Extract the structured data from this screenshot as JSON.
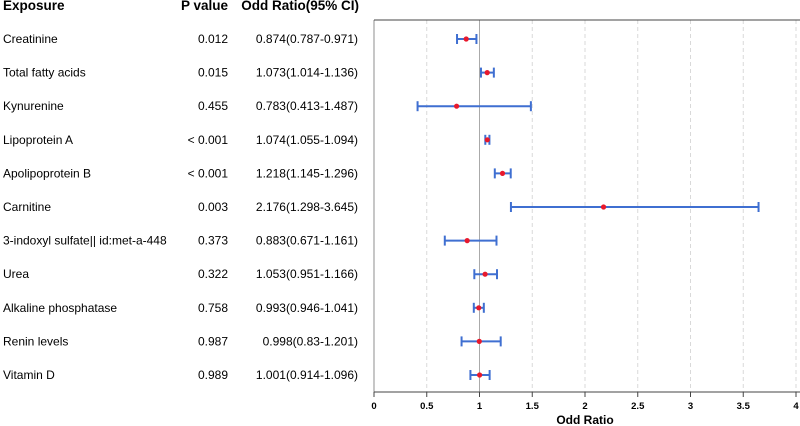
{
  "headers": {
    "exposure": "Exposure",
    "pvalue": "P value",
    "or": "Odd Ratio(95% CI)"
  },
  "rows": [
    {
      "exposure": "Creatinine",
      "p": "0.012",
      "or_text": "0.874(0.787-0.971)"
    },
    {
      "exposure": "Total fatty acids",
      "p": "0.015",
      "or_text": "1.073(1.014-1.136)"
    },
    {
      "exposure": "Kynurenine",
      "p": "0.455",
      "or_text": "0.783(0.413-1.487)"
    },
    {
      "exposure": "Lipoprotein A",
      "p": "< 0.001",
      "or_text": "1.074(1.055-1.094)"
    },
    {
      "exposure": "Apolipoprotein B",
      "p": "< 0.001",
      "or_text": "1.218(1.145-1.296)"
    },
    {
      "exposure": "Carnitine",
      "p": "0.003",
      "or_text": "2.176(1.298-3.645)"
    },
    {
      "exposure": "3-indoxyl sulfate|| id:met-a-448",
      "p": "0.373",
      "or_text": "0.883(0.671-1.161)"
    },
    {
      "exposure": "Urea",
      "p": "0.322",
      "or_text": "1.053(0.951-1.166)"
    },
    {
      "exposure": "Alkaline phosphatase",
      "p": "0.758",
      "or_text": "0.993(0.946-1.041)"
    },
    {
      "exposure": "Renin levels",
      "p": "0.987",
      "or_text": "0.998(0.83-1.201)"
    },
    {
      "exposure": "Vitamin D",
      "p": "0.989",
      "or_text": "1.001(0.914-1.096)"
    }
  ],
  "chart_data": {
    "type": "forest",
    "xlabel": "Odd Ratio",
    "xlim": [
      0,
      4
    ],
    "xticks": [
      "0",
      "0.5",
      "1",
      "1.5",
      "2",
      "2.5",
      "3",
      "3.5",
      "4"
    ],
    "reference_line": 1,
    "grid": "vertical dashed",
    "categories": [
      "Creatinine",
      "Total fatty acids",
      "Kynurenine",
      "Lipoprotein A",
      "Apolipoprotein B",
      "Carnitine",
      "3-indoxyl sulfate|| id:met-a-448",
      "Urea",
      "Alkaline phosphatase",
      "Renin levels",
      "Vitamin D"
    ],
    "or": [
      0.874,
      1.073,
      0.783,
      1.074,
      1.218,
      2.176,
      0.883,
      1.053,
      0.993,
      0.998,
      1.001
    ],
    "lower": [
      0.787,
      1.014,
      0.413,
      1.055,
      1.145,
      1.298,
      0.671,
      0.951,
      0.946,
      0.83,
      0.914
    ],
    "upper": [
      0.971,
      1.136,
      1.487,
      1.094,
      1.296,
      3.645,
      1.161,
      1.166,
      1.041,
      1.201,
      1.096
    ],
    "ci_color": "#3f6fd1",
    "point_color": "#e8192c",
    "ref_color": "#aaaaaa",
    "grid_color": "#d9d9d9",
    "border_color": "#444444"
  }
}
